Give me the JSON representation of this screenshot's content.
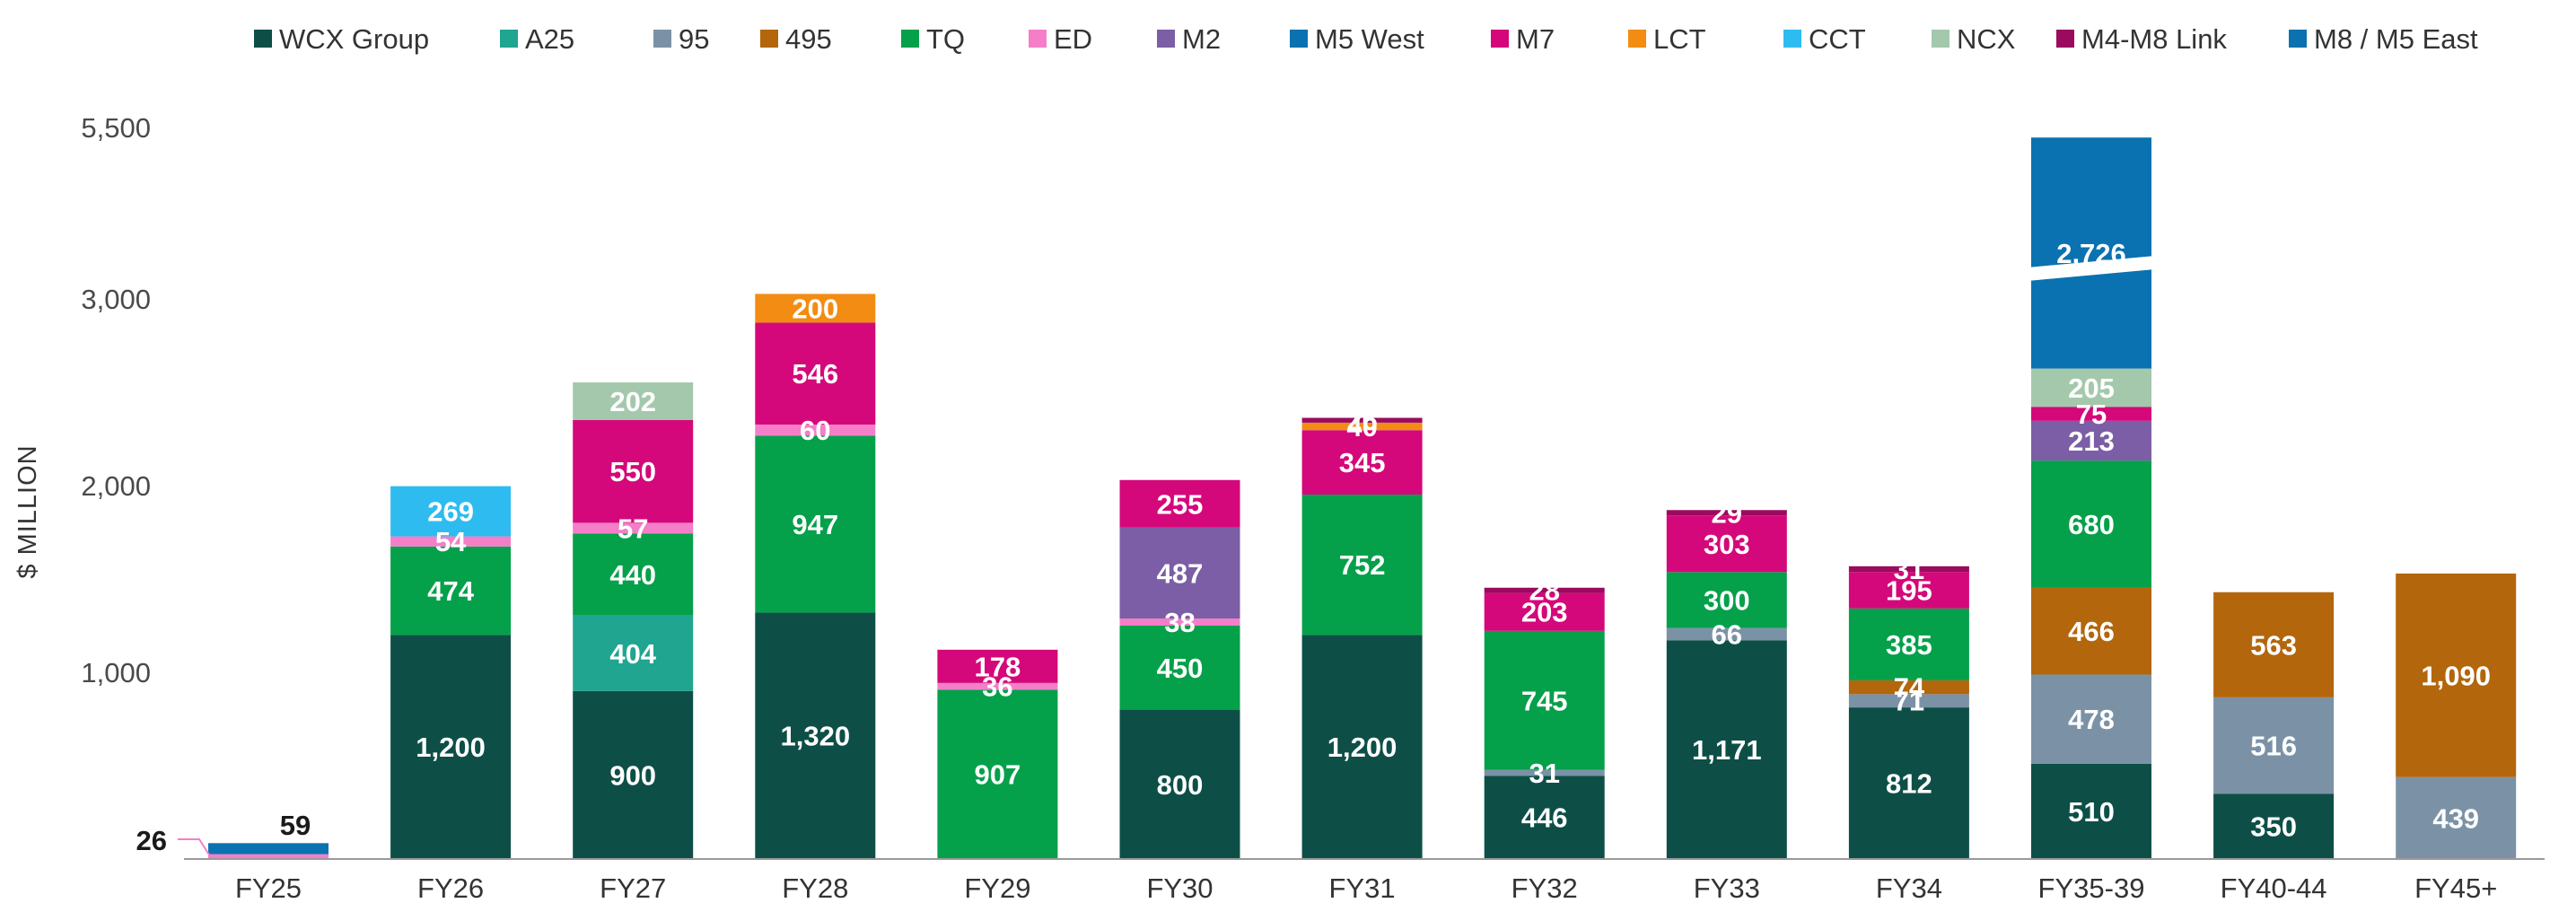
{
  "chart_data": {
    "type": "bar",
    "stacked": true,
    "ylabel": "$ MILLION",
    "y_tick_labels": [
      "1,000",
      "2,000",
      "3,000",
      "5,500"
    ],
    "y_tick_values": [
      1000,
      2000,
      3000,
      5500
    ],
    "y_axis_break": true,
    "categories": [
      "FY25",
      "FY26",
      "FY27",
      "FY28",
      "FY29",
      "FY30",
      "FY31",
      "FY32",
      "FY33",
      "FY34",
      "FY35-39",
      "FY40-44",
      "FY45+"
    ],
    "series": [
      {
        "name": "WCX Group",
        "color": "#0d4f47",
        "values": [
          0,
          1200,
          900,
          1320,
          0,
          800,
          1200,
          446,
          1171,
          812,
          510,
          350,
          0
        ]
      },
      {
        "name": "A25",
        "color": "#1fa590",
        "values": [
          0,
          0,
          404,
          0,
          0,
          0,
          0,
          0,
          0,
          0,
          0,
          0,
          0
        ]
      },
      {
        "name": "95",
        "color": "#7b92a6",
        "values": [
          0,
          0,
          0,
          0,
          0,
          0,
          0,
          31,
          66,
          71,
          478,
          516,
          439
        ]
      },
      {
        "name": "495",
        "color": "#b3660b",
        "values": [
          0,
          0,
          0,
          0,
          0,
          0,
          0,
          0,
          0,
          74,
          466,
          563,
          1090
        ]
      },
      {
        "name": "TQ",
        "color": "#05a04a",
        "values": [
          0,
          474,
          440,
          947,
          907,
          450,
          752,
          745,
          300,
          385,
          680,
          0,
          0
        ]
      },
      {
        "name": "ED",
        "color": "#f47ec8",
        "values": [
          26,
          54,
          57,
          60,
          36,
          38,
          0,
          0,
          0,
          0,
          0,
          0,
          0
        ]
      },
      {
        "name": "M2",
        "color": "#7b5ea5",
        "values": [
          0,
          0,
          0,
          0,
          0,
          487,
          0,
          0,
          0,
          0,
          213,
          0,
          0
        ]
      },
      {
        "name": "M5 West",
        "color": "#0a72b0",
        "values": [
          59,
          0,
          0,
          0,
          0,
          0,
          0,
          0,
          0,
          0,
          0,
          0,
          0
        ]
      },
      {
        "name": "M7",
        "color": "#d4087a",
        "values": [
          0,
          0,
          550,
          546,
          178,
          255,
          345,
          203,
          303,
          195,
          75,
          0,
          0
        ]
      },
      {
        "name": "LCT",
        "color": "#f28c12",
        "values": [
          0,
          0,
          0,
          200,
          0,
          0,
          40,
          0,
          0,
          0,
          0,
          0,
          0
        ]
      },
      {
        "name": "CCT",
        "color": "#2ebcf0",
        "values": [
          0,
          269,
          0,
          0,
          0,
          0,
          0,
          0,
          0,
          0,
          0,
          0,
          0
        ]
      },
      {
        "name": "NCX",
        "color": "#a4c8ac",
        "values": [
          0,
          0,
          202,
          0,
          0,
          0,
          0,
          0,
          0,
          0,
          205,
          0,
          0
        ]
      },
      {
        "name": "M4-M8 Link",
        "color": "#9b0a5e",
        "values": [
          0,
          0,
          0,
          0,
          0,
          0,
          26,
          28,
          29,
          31,
          0,
          0,
          0
        ]
      },
      {
        "name": "M8 / M5 East",
        "color": "#0a72b0",
        "values": [
          0,
          0,
          0,
          0,
          0,
          0,
          0,
          0,
          0,
          0,
          2726,
          0,
          0
        ]
      }
    ]
  }
}
